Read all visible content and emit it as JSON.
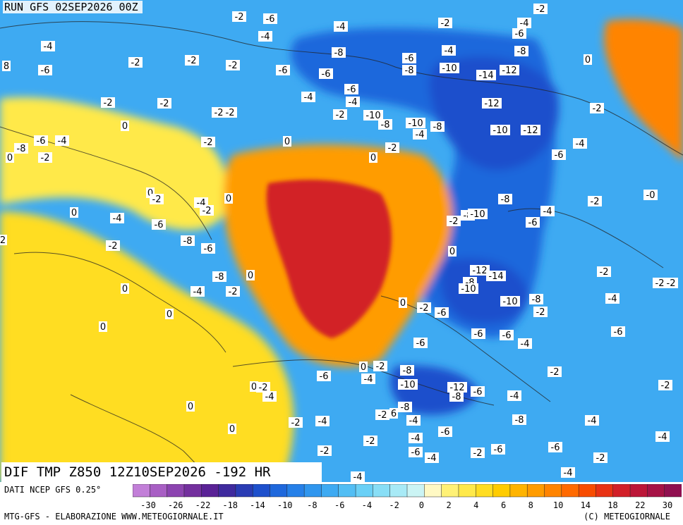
{
  "header": {
    "run_title": "RUN GFS 02SEP2026 00Z"
  },
  "map_title": "DIF TMP Z850 12Z10SEP2026 -192 HR",
  "data_source": "DATI NCEP GFS 0.25°",
  "credit_left": "MTG-GFS - ELABORAZIONE WWW.METEOGIORNALE.IT",
  "credit_right": "(C) METEOGIORNALE",
  "colorbar": {
    "colors": [
      "#c27fd8",
      "#a85fc4",
      "#8c44b0",
      "#74309e",
      "#5a2296",
      "#3f2a9e",
      "#2a3cb4",
      "#1e50cc",
      "#1f68dc",
      "#2680e8",
      "#3096ee",
      "#3eaaf2",
      "#52bef4",
      "#6ad0f6",
      "#88def6",
      "#a8eaf6",
      "#cbf4f4",
      "#fff9c4",
      "#fff176",
      "#ffe94a",
      "#ffdd22",
      "#ffcc00",
      "#ffb400",
      "#ff9c00",
      "#ff8400",
      "#ff6a00",
      "#f84c00",
      "#e83214",
      "#d22028",
      "#bc1638",
      "#a61246",
      "#901050"
    ],
    "tick_labels": [
      "-30",
      "-26",
      "-22",
      "-18",
      "-14",
      "-10",
      "-8",
      "-6",
      "-4",
      "-2",
      "0",
      "2",
      "4",
      "6",
      "8",
      "10",
      "14",
      "18",
      "22",
      "30"
    ]
  },
  "map": {
    "background": "#3eaaf2",
    "regions": [
      {
        "name": "cold-anomaly-northeast",
        "color": "#1f68dc"
      },
      {
        "name": "cold-anomaly-core",
        "color": "#1e50cc"
      },
      {
        "name": "warm-anomaly-center",
        "color": "#ff9c00"
      },
      {
        "name": "warm-anomaly-core",
        "color": "#d22028"
      },
      {
        "name": "warm-anomaly-northeast",
        "color": "#ff8400"
      },
      {
        "name": "mild-anomaly-west",
        "color": "#ffe94a"
      },
      {
        "name": "mild-anomaly-southwest",
        "color": "#ffdd22"
      }
    ],
    "labels": [
      {
        "text": "-2",
        "lon": 339,
        "lat": 24
      },
      {
        "text": "-6",
        "lon": 383,
        "lat": 27
      },
      {
        "text": "-4",
        "lon": 376,
        "lat": 52
      },
      {
        "text": "-2",
        "lon": 766,
        "lat": 13
      },
      {
        "text": "-4",
        "lon": 483,
        "lat": 38
      },
      {
        "text": "-2",
        "lon": 631,
        "lat": 33
      },
      {
        "text": "-4",
        "lon": 743,
        "lat": 33
      },
      {
        "text": "-6",
        "lon": 736,
        "lat": 48
      },
      {
        "text": "-4",
        "lon": 68,
        "lat": 66
      },
      {
        "text": "-6",
        "lon": 64,
        "lat": 100
      },
      {
        "text": "8",
        "lon": 9,
        "lat": 94
      },
      {
        "text": "-2",
        "lon": 192,
        "lat": 89
      },
      {
        "text": "-2",
        "lon": 272,
        "lat": 86
      },
      {
        "text": "-2",
        "lon": 330,
        "lat": 93
      },
      {
        "text": "-6",
        "lon": 401,
        "lat": 100
      },
      {
        "text": "-8",
        "lon": 480,
        "lat": 75
      },
      {
        "text": "-6",
        "lon": 462,
        "lat": 105
      },
      {
        "text": "-4",
        "lon": 636,
        "lat": 72
      },
      {
        "text": "-6",
        "lon": 580,
        "lat": 83
      },
      {
        "text": "-8",
        "lon": 580,
        "lat": 100
      },
      {
        "text": "-10",
        "lon": 637,
        "lat": 97
      },
      {
        "text": "-14",
        "lon": 689,
        "lat": 107
      },
      {
        "text": "-12",
        "lon": 722,
        "lat": 100
      },
      {
        "text": "-8",
        "lon": 739,
        "lat": 73
      },
      {
        "text": "0",
        "lon": 833,
        "lat": 85
      },
      {
        "text": "-2",
        "lon": 153,
        "lat": 146
      },
      {
        "text": "-2",
        "lon": 233,
        "lat": 147
      },
      {
        "text": "-2",
        "lon": 310,
        "lat": 160
      },
      {
        "text": "-2",
        "lon": 326,
        "lat": 160
      },
      {
        "text": "-4",
        "lon": 437,
        "lat": 138
      },
      {
        "text": "-6",
        "lon": 498,
        "lat": 127
      },
      {
        "text": "-4",
        "lon": 500,
        "lat": 145
      },
      {
        "text": "-2",
        "lon": 482,
        "lat": 163
      },
      {
        "text": "-10",
        "lon": 529,
        "lat": 164
      },
      {
        "text": "-8",
        "lon": 546,
        "lat": 177
      },
      {
        "text": "-10",
        "lon": 589,
        "lat": 175
      },
      {
        "text": "-8",
        "lon": 620,
        "lat": 180
      },
      {
        "text": "-4",
        "lon": 595,
        "lat": 191
      },
      {
        "text": "-12",
        "lon": 697,
        "lat": 147
      },
      {
        "text": "-10",
        "lon": 709,
        "lat": 185
      },
      {
        "text": "-12",
        "lon": 752,
        "lat": 185
      },
      {
        "text": "-2",
        "lon": 846,
        "lat": 154
      },
      {
        "text": "0",
        "lon": 177,
        "lat": 179
      },
      {
        "text": "-8",
        "lon": 30,
        "lat": 211
      },
      {
        "text": "-6",
        "lon": 58,
        "lat": 200
      },
      {
        "text": "-4",
        "lon": 88,
        "lat": 200
      },
      {
        "text": "0",
        "lon": 14,
        "lat": 224
      },
      {
        "text": "-2",
        "lon": 64,
        "lat": 224
      },
      {
        "text": "-2",
        "lon": 295,
        "lat": 202
      },
      {
        "text": "0",
        "lon": 407,
        "lat": 201
      },
      {
        "text": "-2",
        "lon": 556,
        "lat": 210
      },
      {
        "text": "0",
        "lon": 529,
        "lat": 224
      },
      {
        "text": "-6",
        "lon": 792,
        "lat": 220
      },
      {
        "text": "-4",
        "lon": 822,
        "lat": 204
      },
      {
        "text": "0",
        "lon": 213,
        "lat": 274
      },
      {
        "text": "-2",
        "lon": 222,
        "lat": 283
      },
      {
        "text": "-4",
        "lon": 285,
        "lat": 288
      },
      {
        "text": "0",
        "lon": 324,
        "lat": 282
      },
      {
        "text": "-2",
        "lon": 293,
        "lat": 299
      },
      {
        "text": "0",
        "lon": 105,
        "lat": 302
      },
      {
        "text": "-4",
        "lon": 166,
        "lat": 310
      },
      {
        "text": "-6",
        "lon": 225,
        "lat": 319
      },
      {
        "text": "-8",
        "lon": 716,
        "lat": 283
      },
      {
        "text": "-4",
        "lon": 776,
        "lat": 300
      },
      {
        "text": "-2",
        "lon": 843,
        "lat": 286
      },
      {
        "text": "-0",
        "lon": 922,
        "lat": 277
      },
      {
        "text": "-2",
        "lon": 643,
        "lat": 314
      },
      {
        "text": "-8",
        "lon": 663,
        "lat": 306
      },
      {
        "text": "-10",
        "lon": 677,
        "lat": 304
      },
      {
        "text": "-6",
        "lon": 755,
        "lat": 316
      },
      {
        "text": "2",
        "lon": 4,
        "lat": 341
      },
      {
        "text": "-2",
        "lon": 160,
        "lat": 349
      },
      {
        "text": "-8",
        "lon": 266,
        "lat": 342
      },
      {
        "text": "-6",
        "lon": 295,
        "lat": 353
      },
      {
        "text": "0",
        "lon": 641,
        "lat": 357
      },
      {
        "text": "-8",
        "lon": 311,
        "lat": 393
      },
      {
        "text": "0",
        "lon": 355,
        "lat": 391
      },
      {
        "text": "-12",
        "lon": 680,
        "lat": 384
      },
      {
        "text": "-14",
        "lon": 703,
        "lat": 392
      },
      {
        "text": "-8",
        "lon": 666,
        "lat": 401
      },
      {
        "text": "-10",
        "lon": 664,
        "lat": 410
      },
      {
        "text": "-2",
        "lon": 856,
        "lat": 386
      },
      {
        "text": "-2",
        "lon": 935,
        "lat": 402
      },
      {
        "text": "-2",
        "lon": 951,
        "lat": 402
      },
      {
        "text": "0",
        "lon": 177,
        "lat": 410
      },
      {
        "text": "-4",
        "lon": 280,
        "lat": 414
      },
      {
        "text": "-2",
        "lon": 330,
        "lat": 414
      },
      {
        "text": "-10",
        "lon": 723,
        "lat": 428
      },
      {
        "text": "-8",
        "lon": 760,
        "lat": 425
      },
      {
        "text": "-4",
        "lon": 868,
        "lat": 424
      },
      {
        "text": "0",
        "lon": 571,
        "lat": 430
      },
      {
        "text": "-2",
        "lon": 601,
        "lat": 437
      },
      {
        "text": "-6",
        "lon": 626,
        "lat": 444
      },
      {
        "text": "-2",
        "lon": 766,
        "lat": 443
      },
      {
        "text": "0",
        "lon": 240,
        "lat": 446
      },
      {
        "text": "0",
        "lon": 146,
        "lat": 464
      },
      {
        "text": "-6",
        "lon": 678,
        "lat": 474
      },
      {
        "text": "-6",
        "lon": 718,
        "lat": 476
      },
      {
        "text": "-6",
        "lon": 876,
        "lat": 471
      },
      {
        "text": "-6",
        "lon": 596,
        "lat": 487
      },
      {
        "text": "-4",
        "lon": 744,
        "lat": 488
      },
      {
        "text": "0",
        "lon": 515,
        "lat": 521
      },
      {
        "text": "-2",
        "lon": 539,
        "lat": 520
      },
      {
        "text": "-8",
        "lon": 577,
        "lat": 526
      },
      {
        "text": "-6",
        "lon": 459,
        "lat": 534
      },
      {
        "text": "-4",
        "lon": 522,
        "lat": 538
      },
      {
        "text": "-2",
        "lon": 786,
        "lat": 528
      },
      {
        "text": "-10",
        "lon": 578,
        "lat": 546
      },
      {
        "text": "-12",
        "lon": 648,
        "lat": 550
      },
      {
        "text": "-6",
        "lon": 677,
        "lat": 556
      },
      {
        "text": "-8",
        "lon": 647,
        "lat": 563
      },
      {
        "text": "0",
        "lon": 360,
        "lat": 549
      },
      {
        "text": "-2",
        "lon": 373,
        "lat": 550
      },
      {
        "text": "-4",
        "lon": 382,
        "lat": 563
      },
      {
        "text": "-4",
        "lon": 729,
        "lat": 562
      },
      {
        "text": "-2",
        "lon": 943,
        "lat": 547
      },
      {
        "text": "0",
        "lon": 270,
        "lat": 577
      },
      {
        "text": "-8",
        "lon": 574,
        "lat": 578
      },
      {
        "text": "-2",
        "lon": 542,
        "lat": 589
      },
      {
        "text": "6",
        "lon": 558,
        "lat": 587
      },
      {
        "text": "-2",
        "lon": 419,
        "lat": 600
      },
      {
        "text": "-4",
        "lon": 457,
        "lat": 598
      },
      {
        "text": "-4",
        "lon": 586,
        "lat": 597
      },
      {
        "text": "-8",
        "lon": 736,
        "lat": 596
      },
      {
        "text": "-4",
        "lon": 839,
        "lat": 597
      },
      {
        "text": "0",
        "lon": 329,
        "lat": 609
      },
      {
        "text": "-6",
        "lon": 631,
        "lat": 613
      },
      {
        "text": "-4",
        "lon": 939,
        "lat": 620
      },
      {
        "text": "-2",
        "lon": 525,
        "lat": 626
      },
      {
        "text": "-4",
        "lon": 589,
        "lat": 622
      },
      {
        "text": "-6",
        "lon": 787,
        "lat": 635
      },
      {
        "text": "-2",
        "lon": 460,
        "lat": 640
      },
      {
        "text": "-6",
        "lon": 589,
        "lat": 642
      },
      {
        "text": "-4",
        "lon": 612,
        "lat": 650
      },
      {
        "text": "-2",
        "lon": 677,
        "lat": 643
      },
      {
        "text": "-6",
        "lon": 706,
        "lat": 638
      },
      {
        "text": "-2",
        "lon": 851,
        "lat": 650
      },
      {
        "text": "-4",
        "lon": 805,
        "lat": 671
      },
      {
        "text": "-4",
        "lon": 507,
        "lat": 677
      }
    ]
  }
}
